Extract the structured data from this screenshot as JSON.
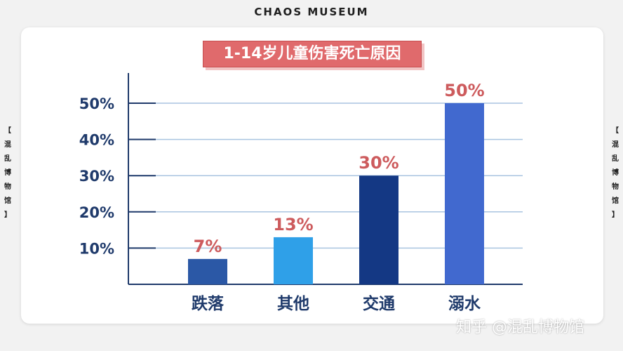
{
  "header": {
    "brand": "CHAOS MUSEUM"
  },
  "side_labels": {
    "left": [
      "【",
      "混",
      "乱",
      "博",
      "物",
      "馆",
      "】"
    ],
    "right": [
      "【",
      "混",
      "乱",
      "博",
      "物",
      "馆",
      "】"
    ]
  },
  "watermark": "知乎 @混乱博物馆",
  "colors": {
    "title_bg": "#e06a6c",
    "value_label": "#cd5b5d",
    "axis_label": "#1f3a6b",
    "grid": "#a9c4e0"
  },
  "chart_data": {
    "type": "bar",
    "title": "1-14岁儿童伤害死亡原因",
    "categories": [
      "跌落",
      "其他",
      "交通",
      "溺水"
    ],
    "values": [
      7,
      13,
      30,
      50
    ],
    "value_labels": [
      "7%",
      "13%",
      "30%",
      "50%"
    ],
    "bar_colors": [
      "#2b58a6",
      "#2fa0e8",
      "#143884",
      "#4169cf"
    ],
    "yticks": [
      10,
      20,
      30,
      40,
      50
    ],
    "ytick_labels": [
      "10%",
      "20%",
      "30%",
      "40%",
      "50%"
    ],
    "ylim": [
      0,
      50
    ],
    "grid": true,
    "xlabel": "",
    "ylabel": ""
  }
}
